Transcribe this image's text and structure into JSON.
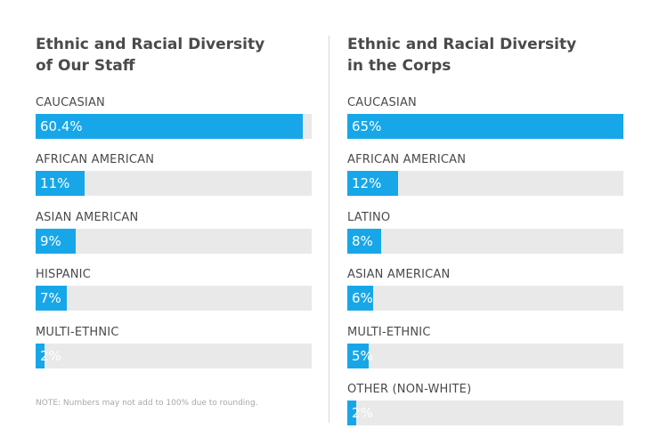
{
  "colors": {
    "bar": "#17a7e8",
    "track": "#e9e9e9",
    "title": "#4a4a4a",
    "note": "#a8a8a8"
  },
  "note": "NOTE: Numbers may not add to 100% due to rounding.",
  "chart_data": [
    {
      "type": "bar",
      "orientation": "horizontal",
      "title": "Ethnic and Racial Diversity\nof Our Staff",
      "categories": [
        "CAUCASIAN",
        "AFRICAN AMERICAN",
        "ASIAN AMERICAN",
        "HISPANIC",
        "MULTI-ETHNIC"
      ],
      "values": [
        60.4,
        11,
        9,
        7,
        2
      ],
      "value_labels": [
        "60.4%",
        "11%",
        "9%",
        "7%",
        "2%"
      ],
      "xlim": [
        0,
        62.5
      ]
    },
    {
      "type": "bar",
      "orientation": "horizontal",
      "title": "Ethnic and Racial Diversity\nin the Corps",
      "categories": [
        "CAUCASIAN",
        "AFRICAN AMERICAN",
        "LATINO",
        "ASIAN AMERICAN",
        "MULTI-ETHNIC",
        "OTHER (NON-WHITE)"
      ],
      "values": [
        65,
        12,
        8,
        6,
        5,
        2
      ],
      "value_labels": [
        "65%",
        "12%",
        "8%",
        "6%",
        "5%",
        "2%"
      ],
      "xlim": [
        0,
        65
      ]
    }
  ]
}
